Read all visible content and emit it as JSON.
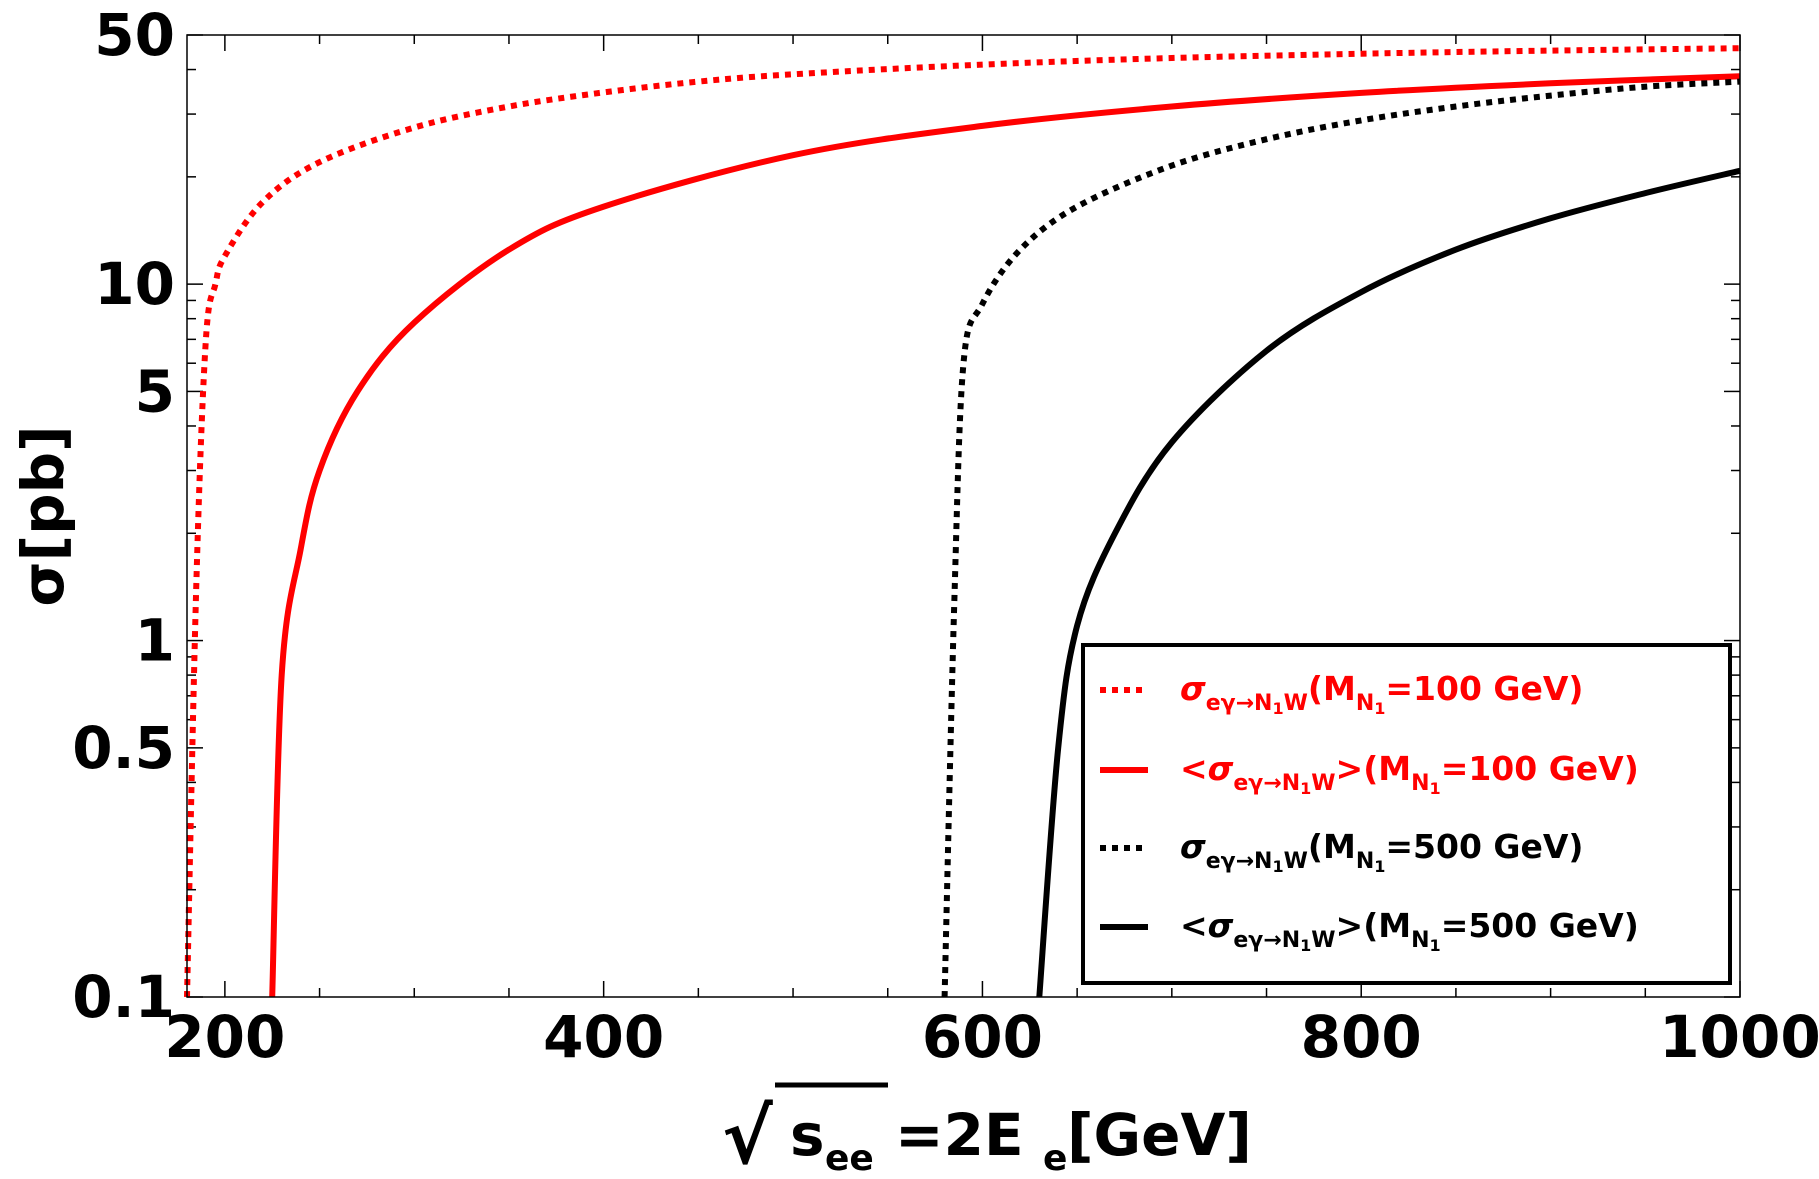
{
  "chart_data": {
    "type": "line",
    "title": "",
    "xlabel": {
      "sqrt_sign": "√",
      "radicand": "s",
      "radicand_sub": "ee",
      "rest": "=2E",
      "rest_sub": "e",
      "unit": "[GeV]"
    },
    "ylabel": "σ[pb]",
    "y_scale": "log",
    "xlim": [
      180,
      1000
    ],
    "ylim": [
      0.1,
      50
    ],
    "x_ticks": [
      {
        "value": 200,
        "label": "200"
      },
      {
        "value": 400,
        "label": "400"
      },
      {
        "value": 600,
        "label": "600"
      },
      {
        "value": 800,
        "label": "800"
      },
      {
        "value": 1000,
        "label": "1000"
      }
    ],
    "y_ticks": [
      {
        "value": 0.1,
        "label": "0.1"
      },
      {
        "value": 0.5,
        "label": "0.5"
      },
      {
        "value": 1,
        "label": "1"
      },
      {
        "value": 5,
        "label": "5"
      },
      {
        "value": 10,
        "label": "10"
      },
      {
        "value": 50,
        "label": "50"
      }
    ],
    "legend_position": "bottom-right",
    "series": [
      {
        "name": "σ_{eγ→N1W}(M_N1=100 GeV)",
        "color": "#ff0000",
        "style": "dotted",
        "x": [
          180,
          185,
          190,
          195,
          200,
          220,
          250,
          300,
          350,
          400,
          450,
          500,
          600,
          700,
          800,
          900,
          1000
        ],
        "y": [
          0.1,
          1.5,
          7.0,
          10,
          12,
          17,
          22,
          27.5,
          31.5,
          34.5,
          37,
          38.8,
          41.3,
          43.1,
          44.3,
          45.2,
          45.9
        ]
      },
      {
        "name": "<σ_{eγ→N1W}>(M_N1=100 GeV)",
        "color": "#ff0000",
        "style": "solid",
        "x": [
          225,
          230,
          240,
          250,
          270,
          300,
          350,
          400,
          500,
          600,
          700,
          800,
          900,
          1000
        ],
        "y": [
          0.1,
          0.8,
          1.8,
          3.0,
          5.0,
          7.8,
          12.5,
          16.5,
          23.0,
          27.8,
          31.5,
          34.4,
          36.6,
          38.3
        ]
      },
      {
        "name": "σ_{eγ→N1W}(M_N1=500 GeV)",
        "color": "#000000",
        "style": "dotted",
        "x": [
          580,
          585,
          590,
          600,
          620,
          650,
          700,
          750,
          800,
          850,
          900,
          950,
          1000
        ],
        "y": [
          0.1,
          1.2,
          6.0,
          8.8,
          12.5,
          16.5,
          21.5,
          25.5,
          28.8,
          31.5,
          33.8,
          35.8,
          37.0
        ]
      },
      {
        "name": "<σ_{eγ→N1W}>(M_N1=500 GeV)",
        "color": "#000000",
        "style": "solid",
        "x": [
          630,
          640,
          650,
          670,
          700,
          750,
          800,
          850,
          900,
          950,
          1000
        ],
        "y": [
          0.1,
          0.5,
          1.1,
          2.0,
          3.6,
          6.5,
          9.5,
          12.5,
          15.3,
          18.0,
          20.8
        ]
      }
    ],
    "legend": [
      {
        "prefix": "",
        "sigma": "σ",
        "sub": "eγ→N",
        "subsub": "1",
        "sub2": "W",
        "close": "",
        "paren": "(M",
        "m_sub": "N",
        "m_subsub": "1",
        "rest": "=100 GeV)",
        "color": "#ff0000",
        "style": "dotted"
      },
      {
        "prefix": "<",
        "sigma": "σ",
        "sub": "eγ→N",
        "subsub": "1",
        "sub2": "W",
        "close": ">",
        "paren": "(M",
        "m_sub": "N",
        "m_subsub": "1",
        "rest": "=100 GeV)",
        "color": "#ff0000",
        "style": "solid"
      },
      {
        "prefix": "",
        "sigma": "σ",
        "sub": "eγ→N",
        "subsub": "1",
        "sub2": "W",
        "close": "",
        "paren": "(M",
        "m_sub": "N",
        "m_subsub": "1",
        "rest": "=500 GeV)",
        "color": "#000000",
        "style": "dotted"
      },
      {
        "prefix": "<",
        "sigma": "σ",
        "sub": "eγ→N",
        "subsub": "1",
        "sub2": "W",
        "close": ">",
        "paren": "(M",
        "m_sub": "N",
        "m_subsub": "1",
        "rest": "=500 GeV)",
        "color": "#000000",
        "style": "solid"
      }
    ]
  }
}
